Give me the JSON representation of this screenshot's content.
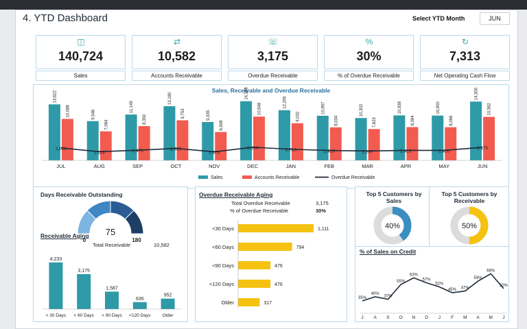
{
  "header": {
    "title": "4. YTD Dashboard",
    "select_label": "Select YTD Month",
    "select_value": "JUN"
  },
  "kpis": [
    {
      "value": "140,724",
      "label": "Sales",
      "icon": "money-hand-icon"
    },
    {
      "value": "10,582",
      "label": "Accounts Receivable",
      "icon": "money-exchange-icon"
    },
    {
      "value": "3,175",
      "label": "Overdue Receivable",
      "icon": "phone-money-icon"
    },
    {
      "value": "30%",
      "label": "% of Overdue Receivable",
      "icon": "percent-badge-icon"
    },
    {
      "value": "7,313",
      "label": "Net Operating Cash Flow",
      "icon": "cash-flow-icon"
    }
  ],
  "colors": {
    "sales": "#2e9aa8",
    "receivable": "#f25b50",
    "overdue": "#1e2a3a",
    "accent": "#f5c211",
    "blue": "#3a8fc0"
  },
  "chart_data": [
    {
      "type": "bar",
      "title": "Sales, Receivable and Overdue Receivable",
      "categories": [
        "JUL",
        "AUG",
        "SEP",
        "OCT",
        "NOV",
        "DEC",
        "JAN",
        "FEB",
        "MAR",
        "APR",
        "MAY",
        "JUN"
      ],
      "series": [
        {
          "name": "Sales",
          "values": [
            13622,
            9546,
            11149,
            13180,
            9335,
            14388,
            12206,
            10857,
            10302,
            10938,
            10900,
            14300
          ],
          "labels": [
            "13,622",
            "9,546",
            "11,149",
            "13,180",
            "9,335",
            "14,388",
            "12,206",
            "10,857",
            "10,302",
            "10,938",
            "10,900",
            "14,300"
          ]
        },
        {
          "name": "Accounts Receivable",
          "values": [
            10088,
            7064,
            8350,
            9753,
            6908,
            10648,
            9032,
            8034,
            7623,
            8094,
            8066,
            10582
          ],
          "labels": [
            "10,088",
            "7,064",
            "8,350",
            "9,753",
            "6,908",
            "10,648",
            "9,032",
            "8,034",
            "7,623",
            "8,094",
            "8,066",
            "10,582"
          ]
        },
        {
          "name": "Overdue Receivable",
          "type": "line",
          "values": [
            3026,
            2119,
            2475,
            2925,
            2073,
            3194,
            2710,
            2410,
            2287,
            2425,
            2420,
            3175
          ],
          "labels": [
            "3,026",
            "2,119",
            "2,475",
            "2,925",
            "2,073",
            "3,194",
            "2,710",
            "2,410",
            "2,287",
            "2,425",
            "2,420",
            "3,175"
          ]
        }
      ],
      "legend": "bottom"
    },
    {
      "type": "gauge",
      "title": "Days Receivable Outstanding",
      "value": 75,
      "min": 0,
      "max": 180,
      "value_label": "75",
      "min_label": "0",
      "max_label": "180"
    },
    {
      "type": "bar",
      "title": "Receivable Aging",
      "total_label": "Total Receivable",
      "total_value": "10,582",
      "categories": [
        "< 30 Days",
        "< 60 Days",
        "< 90 Days",
        "<120 Days",
        "Older"
      ],
      "values": [
        4233,
        3175,
        1587,
        635,
        952
      ],
      "labels": [
        "4,233",
        "3,175",
        "1,587",
        "635",
        "952"
      ]
    },
    {
      "type": "bar",
      "title": "Overdue Receivable Aging",
      "orientation": "horizontal",
      "total_label": "Total Overdue Receivable",
      "total_value": "3,175",
      "pct_label": "% of Overdue Receivable",
      "pct_value": "30%",
      "categories": [
        "<30 Days",
        "<60 Days",
        "<90 Days",
        "<120 Days",
        "Older"
      ],
      "values": [
        1111,
        794,
        476,
        476,
        317
      ],
      "labels": [
        "1,111",
        "794",
        "476",
        "476",
        "317"
      ]
    },
    {
      "type": "pie",
      "title": "Top 5 Customers by Sales",
      "value": 40,
      "label": "40%"
    },
    {
      "type": "pie",
      "title": "Top 5 Customers by Receivable",
      "value": 50,
      "label": "50%"
    },
    {
      "type": "line",
      "title": "% of Sales on Credit",
      "categories": [
        "J",
        "A",
        "S",
        "O",
        "N",
        "D",
        "J",
        "F",
        "M",
        "A",
        "M",
        "J"
      ],
      "values": [
        35,
        40,
        37,
        55,
        63,
        57,
        52,
        45,
        47,
        59,
        68,
        50
      ],
      "labels": [
        "35%",
        "40%",
        "37%",
        "55%",
        "63%",
        "57%",
        "52%",
        "45%",
        "47%",
        "59%",
        "68%",
        "50%"
      ]
    }
  ]
}
